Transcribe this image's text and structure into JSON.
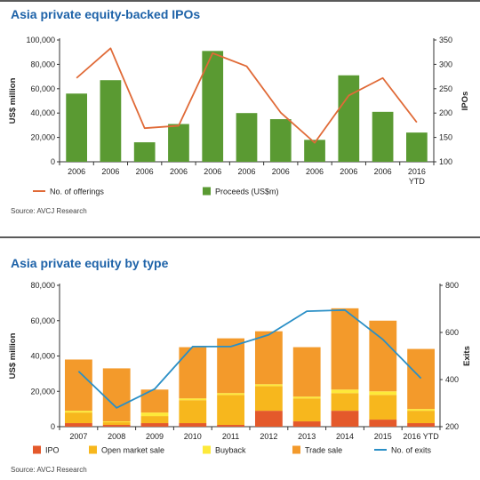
{
  "panels": [
    {
      "title": "Asia private equity-backed IPOs",
      "source": "Source: AVCJ Research",
      "chart_data": {
        "type": "bar",
        "categories": [
          "2006",
          "2006",
          "2006",
          "2006",
          "2006",
          "2006",
          "2006",
          "2006",
          "2006",
          "2006",
          "2016 YTD"
        ],
        "ylabel": "US$ million",
        "y2label": "IPOs",
        "ylim": [
          0,
          100000
        ],
        "y2lim": [
          100,
          350
        ],
        "yticks": [
          "0",
          "20,000",
          "40,000",
          "60,000",
          "80,000",
          "100,000"
        ],
        "y2ticks": [
          "100",
          "150",
          "200",
          "250",
          "300",
          "350"
        ],
        "series": [
          {
            "name": "Proceeds (US$m)",
            "kind": "bar",
            "axis": "left",
            "color": "#5a9a32",
            "values": [
              56000,
              67000,
              16000,
              31000,
              91000,
              40000,
              35000,
              18000,
              71000,
              41000,
              24000
            ]
          },
          {
            "name": "No. of offerings",
            "kind": "line",
            "axis": "right",
            "color": "#e06a37",
            "values": [
              272,
              333,
              169,
              174,
              323,
              296,
              201,
              139,
              236,
              272,
              181
            ]
          }
        ],
        "legend": [
          {
            "label": "No. of offerings",
            "kind": "line",
            "color": "#e06a37"
          },
          {
            "label": "Proceeds (US$m)",
            "kind": "bar",
            "color": "#5a9a32"
          }
        ],
        "legend_position": "bottom",
        "grid": false
      }
    },
    {
      "title": "Asia private equity by type",
      "source": "Source: AVCJ Research",
      "chart_data": {
        "type": "bar",
        "stacked": true,
        "categories": [
          "2007",
          "2008",
          "2009",
          "2010",
          "2011",
          "2012",
          "2013",
          "2014",
          "2015",
          "2016 YTD"
        ],
        "ylabel": "US$ million",
        "y2label": "Exits",
        "ylim": [
          0,
          80000
        ],
        "y2lim": [
          200,
          800
        ],
        "yticks": [
          "0",
          "20,000",
          "40,000",
          "60,000",
          "80,000"
        ],
        "y2ticks": [
          "200",
          "400",
          "600",
          "800"
        ],
        "series": [
          {
            "name": "IPO",
            "kind": "bar",
            "axis": "left",
            "color": "#e4592b",
            "values": [
              2000,
              1000,
              2000,
              2000,
              1000,
              9000,
              3000,
              9000,
              4000,
              2000
            ]
          },
          {
            "name": "Open market sale",
            "kind": "bar",
            "axis": "left",
            "color": "#f7b71d",
            "values": [
              6000,
              1500,
              4000,
              13000,
              17000,
              14000,
              13000,
              10000,
              14000,
              7000
            ]
          },
          {
            "name": "Buyback",
            "kind": "bar",
            "axis": "left",
            "color": "#fde93a",
            "values": [
              1000,
              500,
              2000,
              1000,
              1000,
              1000,
              1000,
              2000,
              2000,
              1000
            ]
          },
          {
            "name": "Trade sale",
            "kind": "bar",
            "axis": "left",
            "color": "#f39a2b",
            "values": [
              29000,
              30000,
              13000,
              29000,
              31000,
              30000,
              28000,
              46000,
              40000,
              34000
            ]
          },
          {
            "name": "No. of exits",
            "kind": "line",
            "axis": "right",
            "color": "#2a8fc6",
            "values": [
              435,
              280,
              360,
              540,
              540,
              590,
              690,
              695,
              570,
              405
            ]
          }
        ],
        "legend": [
          {
            "label": "IPO",
            "kind": "bar",
            "color": "#e4592b"
          },
          {
            "label": "Open market sale",
            "kind": "bar",
            "color": "#f7b71d"
          },
          {
            "label": "Buyback",
            "kind": "bar",
            "color": "#fde93a"
          },
          {
            "label": "Trade sale",
            "kind": "bar",
            "color": "#f39a2b"
          },
          {
            "label": "No. of exits",
            "kind": "line",
            "color": "#2a8fc6"
          }
        ],
        "legend_position": "bottom",
        "grid": false
      }
    }
  ]
}
